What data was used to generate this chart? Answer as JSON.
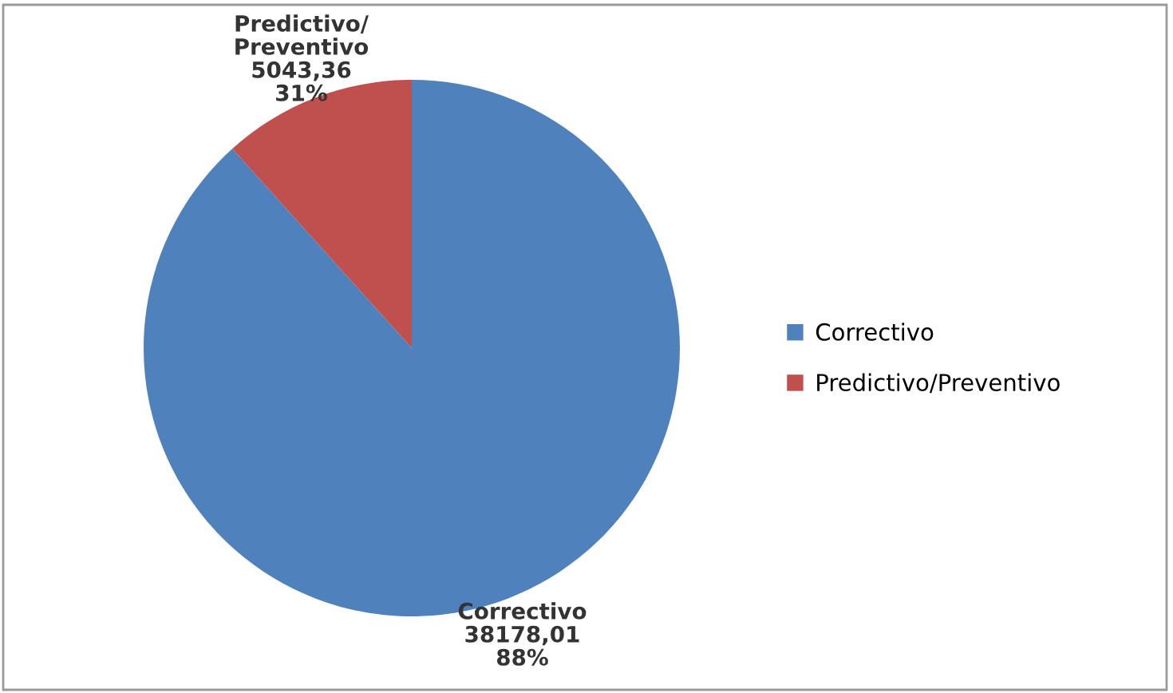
{
  "chart_data": {
    "type": "pie",
    "categories": [
      "Correctivo",
      "Predictivo/Preventivo"
    ],
    "values": [
      38178.01,
      5043.36
    ],
    "colors": [
      "#4f81bd",
      "#c0504d"
    ],
    "value_labels": [
      "38178,01\n88%",
      "5043,36\n31%"
    ],
    "legend": "right"
  }
}
